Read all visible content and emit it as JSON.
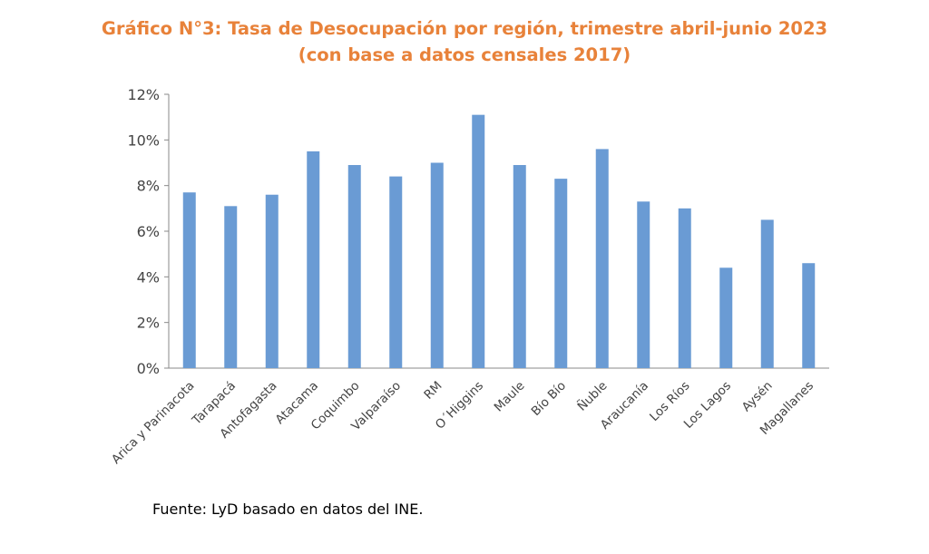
{
  "chart_data": {
    "type": "bar",
    "title": "Gráfico N°3: Tasa de Desocupación por región, trimestre abril-junio 2023",
    "subtitle": "(con base a datos censales 2017)",
    "xlabel": "",
    "ylabel": "",
    "ylim": [
      0,
      12
    ],
    "yticks": [
      "0%",
      "2%",
      "4%",
      "6%",
      "8%",
      "10%",
      "12%"
    ],
    "grid": false,
    "categories": [
      "Arica y Parinacota",
      "Tarapacá",
      "Antofagasta",
      "Atacama",
      "Coquimbo",
      "Valparaíso",
      "RM",
      "O´Higgins",
      "Maule",
      "Bío Bío",
      "Ñuble",
      "Araucanía",
      "Los Ríos",
      "Los Lagos",
      "Aysén",
      "Magallanes"
    ],
    "values": [
      7.7,
      7.1,
      7.6,
      9.5,
      8.9,
      8.4,
      9.0,
      11.1,
      8.9,
      8.3,
      9.6,
      7.3,
      7.0,
      4.4,
      6.5,
      4.6
    ],
    "bar_color": "#6A9BD4",
    "title_color": "#E8823A"
  },
  "source": "Fuente: LyD basado en datos del INE."
}
